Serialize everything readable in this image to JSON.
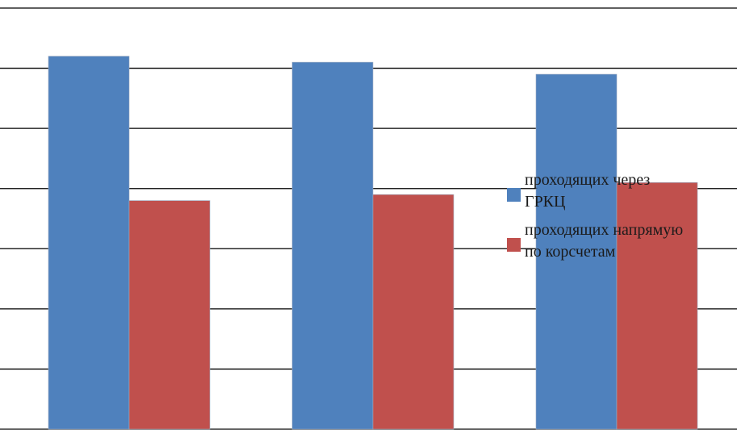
{
  "chart_data": {
    "type": "bar",
    "categories": [
      "",
      "",
      ""
    ],
    "series": [
      {
        "name": "проходящих через ГРКЦ",
        "name_lines": [
          "проходящих через",
          "ГРКЦ"
        ],
        "color": "#4f81bd",
        "values": [
          62,
          61,
          59
        ]
      },
      {
        "name": "проходящих напрямую по корсчетам",
        "name_lines": [
          "проходящих напрямую",
          "по корсчетам"
        ],
        "color": "#c0504d",
        "values": [
          38,
          39,
          41
        ]
      }
    ],
    "ylim": [
      0,
      70
    ],
    "gridline_step": 10,
    "grid": true,
    "legend_position": "right"
  }
}
